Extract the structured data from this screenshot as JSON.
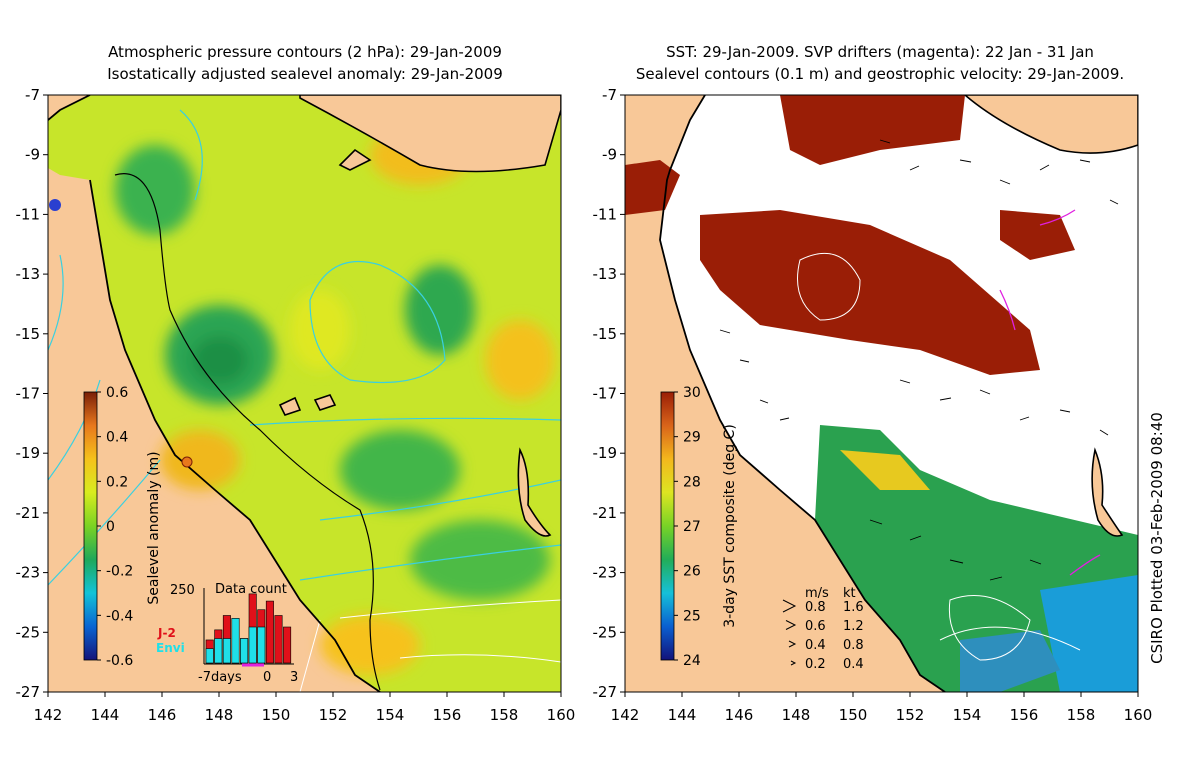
{
  "left_panel": {
    "title_line1": "Atmospheric pressure contours (2 hPa): 29-Jan-2009",
    "title_line2": "Isostatically adjusted sealevel anomaly: 29-Jan-2009",
    "colorbar": {
      "label": "Sealevel anomaly (m)",
      "ticks": [
        "0.6",
        "0.4",
        "0.2",
        "0",
        "-0.2",
        "-0.4",
        "-0.6"
      ],
      "colors": [
        "#14147a",
        "#0a64d2",
        "#13c3d8",
        "#1fa85a",
        "#7bd323",
        "#d8ec1f",
        "#f5c21b",
        "#e8781c",
        "#7a1f07"
      ]
    },
    "data_count": {
      "title": "Data count",
      "ymax_label": "250",
      "x_labels": [
        "-7days",
        "0",
        "3"
      ],
      "legend_j2": "J-2",
      "legend_envi": "Envi",
      "j2_color": "#e0101a",
      "envi_color": "#20e0e8",
      "j2_values": [
        0.32,
        0.46,
        0.66,
        0.62,
        0.34,
        0.96,
        0.74,
        0.86,
        0.66,
        0.5
      ],
      "envi_values": [
        0.2,
        0.34,
        0.34,
        0.62,
        0.34,
        0.5,
        0.5,
        0.0,
        0.0,
        0.0
      ]
    }
  },
  "right_panel": {
    "title_line1": "SST: 29-Jan-2009. SVP drifters (magenta): 22 Jan - 31 Jan",
    "title_line2": "Sealevel contours (0.1 m) and geostrophic velocity: 29-Jan-2009.",
    "colorbar": {
      "label": "3-day SST composite (deg C)",
      "ticks": [
        "30",
        "29",
        "28",
        "27",
        "26",
        "25",
        "24"
      ],
      "colors": [
        "#12127a",
        "#0a5fd0",
        "#16c0d8",
        "#22ad58",
        "#78d326",
        "#dde522",
        "#f3b71d",
        "#d9641a",
        "#9a1e06"
      ]
    },
    "velocity_legend": {
      "header_ms": "m/s",
      "header_kt": "kt",
      "rows": [
        {
          "ms": "0.8",
          "kt": "1.6"
        },
        {
          "ms": "0.6",
          "kt": "1.2"
        },
        {
          "ms": "0.4",
          "kt": "0.8"
        },
        {
          "ms": "0.2",
          "kt": "0.4"
        }
      ]
    }
  },
  "axes": {
    "x_ticks": [
      "142",
      "144",
      "146",
      "148",
      "150",
      "152",
      "154",
      "156",
      "158",
      "160"
    ],
    "y_ticks": [
      "-7",
      "-9",
      "-11",
      "-13",
      "-15",
      "-17",
      "-19",
      "-21",
      "-23",
      "-25",
      "-27"
    ]
  },
  "credit": "CSIRO Plotted 03-Feb-2009 08:40",
  "colors": {
    "land": "#f8c898",
    "drifter": "#e020e0",
    "contour_cyan": "#3ad0e0"
  }
}
